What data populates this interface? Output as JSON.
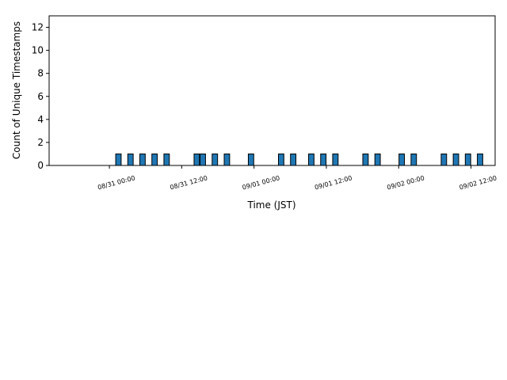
{
  "chart_data": {
    "type": "bar",
    "xlabel": "Time (JST)",
    "ylabel": "Count of Unique Timestamps",
    "x": [
      "08/31 01:00",
      "08/31 03:00",
      "08/31 05:00",
      "08/31 07:00",
      "08/31 09:00",
      "08/31 14:00",
      "08/31 15:00",
      "08/31 17:00",
      "08/31 19:00",
      "08/31 23:00",
      "09/01 04:00",
      "09/01 06:00",
      "09/01 09:00",
      "09/01 11:00",
      "09/01 13:00",
      "09/01 18:00",
      "09/01 20:00",
      "09/02 00:00",
      "09/02 02:00",
      "09/02 07:00",
      "09/02 09:00",
      "09/02 11:00",
      "09/02 13:00"
    ],
    "values": [
      1,
      1,
      1,
      1,
      1,
      1,
      1,
      1,
      1,
      1,
      1,
      1,
      1,
      1,
      1,
      1,
      1,
      1,
      1,
      1,
      1,
      1,
      1
    ],
    "color": "#1f77b4",
    "edgecolor": "#000000",
    "xlim": [
      "08/30 14:00",
      "09/02 16:00"
    ],
    "xticks": [
      "08/31 00:00",
      "08/31 12:00",
      "09/01 00:00",
      "09/01 12:00",
      "09/02 00:00",
      "09/02 12:00"
    ],
    "ylim": [
      0,
      13
    ],
    "yticks": [
      0,
      2,
      4,
      6,
      8,
      10,
      12
    ],
    "grid": false
  }
}
